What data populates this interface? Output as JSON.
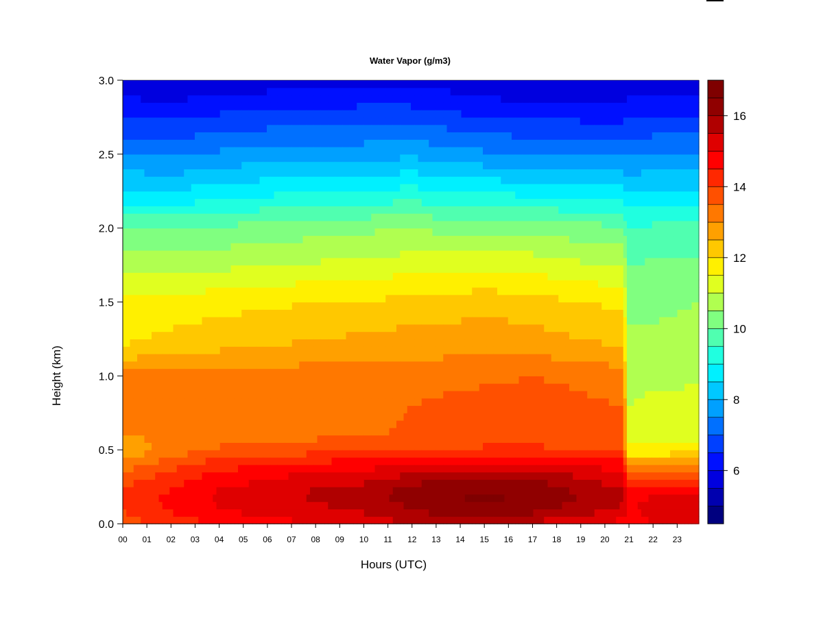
{
  "chart_data": {
    "type": "heatmap",
    "title": "Water Vapor (g/m3)",
    "xlabel": "Hours (UTC)",
    "ylabel": "Height (km)",
    "x_ticks": [
      "00",
      "01",
      "02",
      "03",
      "04",
      "05",
      "06",
      "07",
      "08",
      "09",
      "10",
      "11",
      "12",
      "13",
      "14",
      "15",
      "16",
      "17",
      "18",
      "19",
      "20",
      "21",
      "22",
      "23"
    ],
    "y_ticks": [
      "0.0",
      "0.5",
      "1.0",
      "1.5",
      "2.0",
      "2.5",
      "3.0"
    ],
    "xlim": [
      0,
      23.9
    ],
    "ylim": [
      0,
      3.0
    ],
    "colorbar": {
      "min": 4.5,
      "max": 17,
      "step": 0.5,
      "tick_values": [
        6,
        8,
        10,
        12,
        14,
        16
      ],
      "tick_labels": [
        "6",
        "8",
        "10",
        "12",
        "14",
        "16"
      ],
      "colors": [
        "#00007F",
        "#0000AF",
        "#0000DF",
        "#0010FF",
        "#0040FF",
        "#0070FF",
        "#00A0FF",
        "#00C8FF",
        "#00F0FF",
        "#20FFE0",
        "#50FFB0",
        "#80FF80",
        "#B0FF50",
        "#E0FF20",
        "#FFF000",
        "#FFC800",
        "#FFA000",
        "#FF7800",
        "#FF5000",
        "#FF2800",
        "#FF0000",
        "#DF0000",
        "#B00000",
        "#900000",
        "#7F0000"
      ]
    },
    "grid": false,
    "profiles": {
      "heights_km": [
        0.0,
        0.1,
        0.2,
        0.3,
        0.4,
        0.5,
        0.6,
        0.8,
        1.0,
        1.2,
        1.5,
        1.8,
        2.0,
        2.2,
        2.5,
        2.8,
        3.0
      ],
      "times_h": [
        0,
        2,
        4,
        6,
        8,
        10,
        12,
        13,
        15,
        17,
        19,
        20.8,
        20.9,
        22,
        23.9
      ],
      "water_vapor_g_m3": [
        [
          13.8,
          14.0,
          14.2,
          13.8,
          13.2,
          12.6,
          13.0,
          13.3,
          13.2,
          12.0,
          11.6,
          10.6,
          10.0,
          8.8,
          7.5,
          6.3,
          5.6
        ],
        [
          14.1,
          14.6,
          14.6,
          14.3,
          13.8,
          13.2,
          13.1,
          13.2,
          13.3,
          12.2,
          11.7,
          10.6,
          10.0,
          8.7,
          7.4,
          6.2,
          5.5
        ],
        [
          14.6,
          15.0,
          15.1,
          14.8,
          14.3,
          13.6,
          13.2,
          13.2,
          13.2,
          12.4,
          11.8,
          10.7,
          10.1,
          9.0,
          7.6,
          6.4,
          5.7
        ],
        [
          14.8,
          15.2,
          15.3,
          15.0,
          14.5,
          13.7,
          13.3,
          13.2,
          13.2,
          12.5,
          11.9,
          10.8,
          10.2,
          9.1,
          7.7,
          6.5,
          5.7
        ],
        [
          15.0,
          15.4,
          15.6,
          15.3,
          14.7,
          13.8,
          13.4,
          13.4,
          13.3,
          12.6,
          12.0,
          10.9,
          10.3,
          9.2,
          7.8,
          6.5,
          5.8
        ],
        [
          15.2,
          15.6,
          15.8,
          15.4,
          14.8,
          13.8,
          13.4,
          13.3,
          13.2,
          12.7,
          12.0,
          11.0,
          10.4,
          9.3,
          7.8,
          6.6,
          5.9
        ],
        [
          15.5,
          16.0,
          16.3,
          15.8,
          15.0,
          14.0,
          13.6,
          13.5,
          13.2,
          12.8,
          12.2,
          11.1,
          10.5,
          9.4,
          7.9,
          6.6,
          5.8
        ],
        [
          15.6,
          16.2,
          16.5,
          16.0,
          15.1,
          14.0,
          13.6,
          13.6,
          13.3,
          12.8,
          12.2,
          11.1,
          10.4,
          9.3,
          7.8,
          6.5,
          5.8
        ],
        [
          15.6,
          16.4,
          16.6,
          16.1,
          15.2,
          14.1,
          13.7,
          13.7,
          13.4,
          12.9,
          12.3,
          11.2,
          10.4,
          9.2,
          7.6,
          6.3,
          5.6
        ],
        [
          15.4,
          16.2,
          16.5,
          16.0,
          15.2,
          14.1,
          13.8,
          13.7,
          13.5,
          12.8,
          12.2,
          11.1,
          10.3,
          9.1,
          7.5,
          6.2,
          5.5
        ],
        [
          15.0,
          15.8,
          16.0,
          15.6,
          15.0,
          14.0,
          13.7,
          13.6,
          13.4,
          12.6,
          12.0,
          10.9,
          10.2,
          9.0,
          7.4,
          6.2,
          5.5
        ],
        [
          14.8,
          15.4,
          15.6,
          15.2,
          14.7,
          13.9,
          13.6,
          13.5,
          13.2,
          12.5,
          11.9,
          10.8,
          10.1,
          8.9,
          7.4,
          6.2,
          5.5
        ],
        [
          14.4,
          14.8,
          14.8,
          14.0,
          12.8,
          11.6,
          11.2,
          11.0,
          10.8,
          10.6,
          10.4,
          9.9,
          9.5,
          8.7,
          7.4,
          6.3,
          5.6
        ],
        [
          15.0,
          15.4,
          14.9,
          14.0,
          13.0,
          11.6,
          11.3,
          11.1,
          10.9,
          10.6,
          10.4,
          10.0,
          9.6,
          8.8,
          7.5,
          6.3,
          5.6
        ],
        [
          15.2,
          15.5,
          15.0,
          14.2,
          13.2,
          11.7,
          11.4,
          11.2,
          10.9,
          10.7,
          10.5,
          10.0,
          9.6,
          8.8,
          7.6,
          6.4,
          5.7
        ]
      ]
    }
  }
}
